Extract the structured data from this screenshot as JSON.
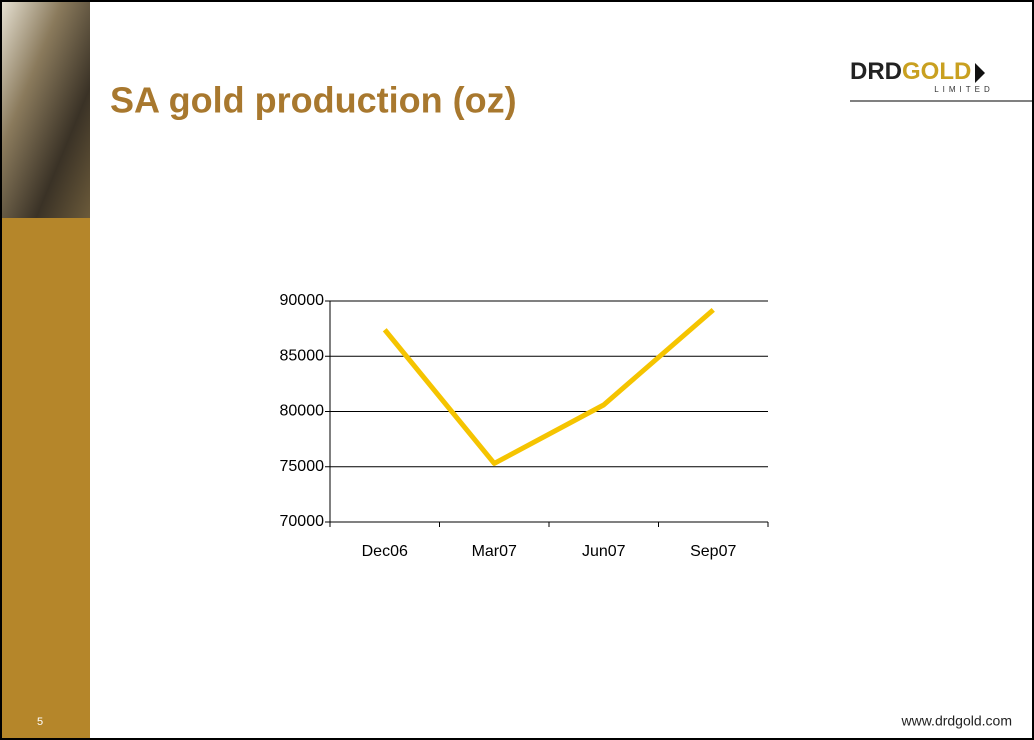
{
  "slide": {
    "logo": [
      "DRD",
      "GOLD"
    ],
    "logo_sub": "LIMITED",
    "page_number": "5",
    "footer": "www.drdgold.com"
  },
  "chart_data": {
    "type": "line",
    "title": "SA gold production (oz)",
    "categories": [
      "Dec06",
      "Mar07",
      "Jun07",
      "Sep07"
    ],
    "series": [
      {
        "name": "SA gold production",
        "color": "#f5c400",
        "values": [
          87400,
          75300,
          80600,
          89200
        ]
      }
    ],
    "ylim": [
      70000,
      90000
    ],
    "yticks": [
      70000,
      75000,
      80000,
      85000,
      90000
    ],
    "grid": true
  }
}
